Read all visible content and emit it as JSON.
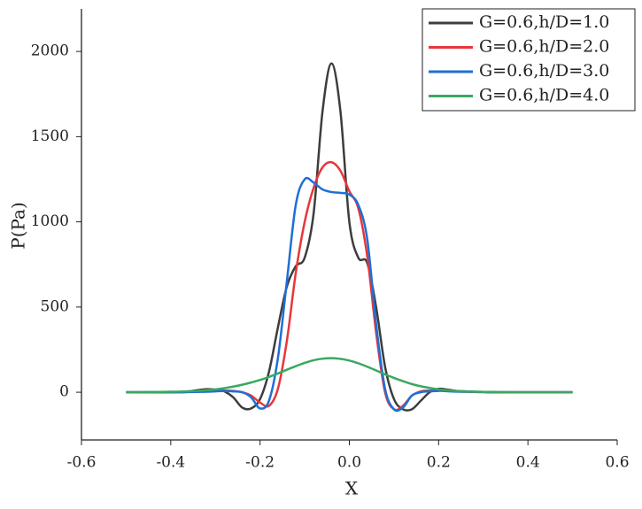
{
  "chart_data": {
    "type": "line",
    "xlabel": "X",
    "ylabel": "P(Pa)",
    "x": [
      -0.5,
      -0.48,
      -0.46,
      -0.44,
      -0.42,
      -0.4,
      -0.38,
      -0.36,
      -0.34,
      -0.32,
      -0.3,
      -0.28,
      -0.26,
      -0.24,
      -0.22,
      -0.2,
      -0.18,
      -0.16,
      -0.14,
      -0.12,
      -0.1,
      -0.08,
      -0.06,
      -0.04,
      -0.02,
      0,
      0.02,
      0.04,
      0.06,
      0.08,
      0.1,
      0.12,
      0.14,
      0.16,
      0.18,
      0.2,
      0.22,
      0.24,
      0.26,
      0.28,
      0.3,
      0.32,
      0.34,
      0.36,
      0.38,
      0.4,
      0.42,
      0.44,
      0.46,
      0.48,
      0.5
    ],
    "series": [
      {
        "name": "G=0.6,h/D=1.0",
        "color": "#3d3d3d",
        "values": [
          0,
          0,
          0,
          0,
          0,
          0,
          2,
          5,
          12,
          18,
          15,
          5,
          -30,
          -90,
          -95,
          -40,
          120,
          380,
          620,
          740,
          790,
          1050,
          1650,
          1930,
          1650,
          1000,
          790,
          760,
          500,
          150,
          -40,
          -100,
          -100,
          -50,
          0,
          20,
          15,
          8,
          5,
          3,
          2,
          1,
          0,
          0,
          0,
          0,
          0,
          0,
          0,
          0,
          0
        ]
      },
      {
        "name": "G=0.6,h/D=2.0",
        "color": "#e8363a",
        "values": [
          0,
          0,
          0,
          0,
          0,
          0,
          0,
          2,
          5,
          8,
          10,
          10,
          8,
          0,
          -20,
          -60,
          -80,
          20,
          300,
          700,
          1000,
          1200,
          1320,
          1350,
          1300,
          1180,
          1080,
          800,
          350,
          0,
          -100,
          -80,
          -20,
          5,
          10,
          10,
          8,
          5,
          3,
          2,
          1,
          0,
          0,
          0,
          0,
          0,
          0,
          0,
          0,
          0,
          0
        ]
      },
      {
        "name": "G=0.6,h/D=3.0",
        "color": "#1f6fd6",
        "values": [
          0,
          0,
          0,
          0,
          0,
          0,
          0,
          1,
          2,
          3,
          5,
          8,
          5,
          0,
          -30,
          -95,
          -50,
          200,
          650,
          1100,
          1250,
          1230,
          1190,
          1175,
          1170,
          1160,
          1100,
          900,
          400,
          20,
          -100,
          -90,
          -20,
          0,
          5,
          8,
          6,
          4,
          3,
          2,
          1,
          0,
          0,
          0,
          0,
          0,
          0,
          0,
          0,
          0,
          0
        ]
      },
      {
        "name": "G=0.6,h/D=4.0",
        "color": "#3aa860",
        "values": [
          0,
          0,
          1,
          1,
          2,
          3,
          4,
          6,
          8,
          12,
          17,
          24,
          33,
          44,
          57,
          72,
          90,
          110,
          132,
          153,
          172,
          188,
          197,
          200,
          196,
          186,
          170,
          150,
          128,
          105,
          84,
          65,
          48,
          35,
          25,
          17,
          11,
          7,
          5,
          3,
          2,
          1,
          1,
          0,
          0,
          0,
          0,
          0,
          0,
          0,
          0
        ]
      }
    ],
    "xlim": [
      -0.6,
      0.6
    ],
    "xticks": [
      -0.6,
      -0.4,
      -0.2,
      {
        "value": 0,
        "label": "0.0"
      },
      0.2,
      0.4,
      0.6
    ],
    "ylim": [
      -280,
      2250
    ],
    "yticks": [
      0,
      500,
      1000,
      1500,
      2000
    ],
    "legend": "upper right"
  }
}
